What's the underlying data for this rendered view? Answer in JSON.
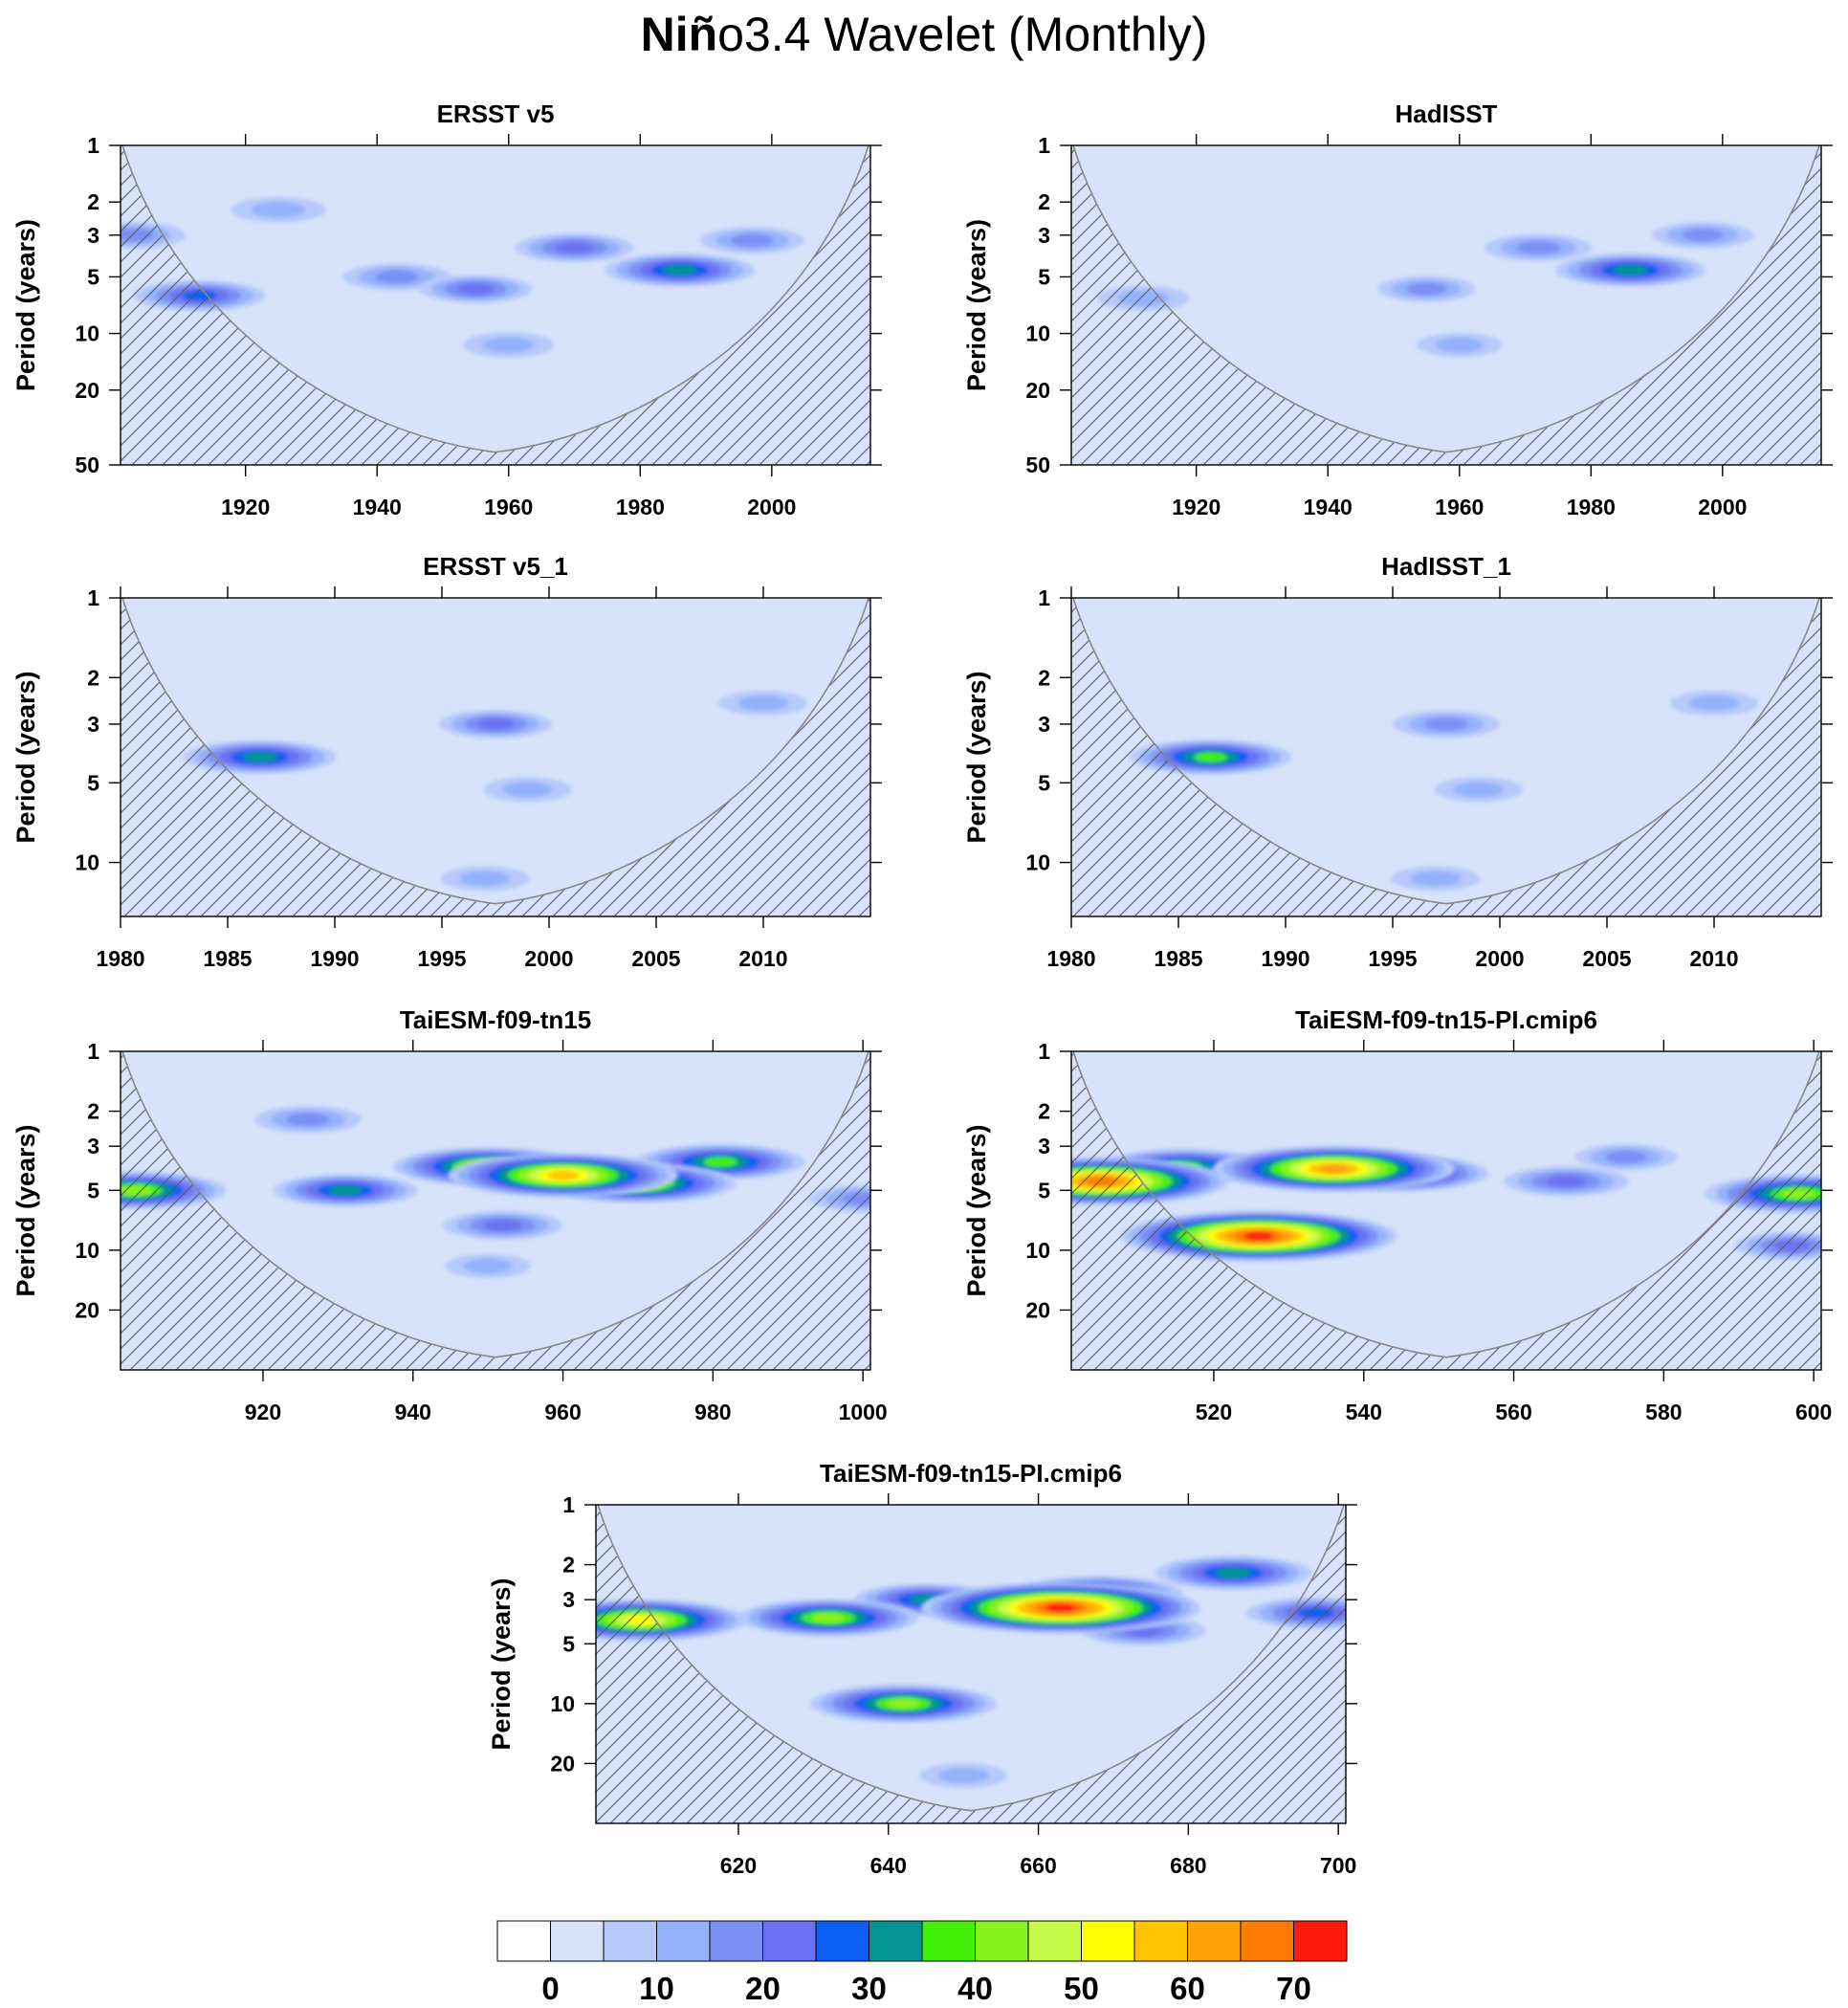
{
  "title": {
    "bold": "Niñ",
    "rest": "o3.4 Wavelet (Monthly)"
  },
  "colors": {
    "levels": [
      "#ffffff",
      "#d7e3fb",
      "#b6c9fb",
      "#94b1fb",
      "#7c8ff4",
      "#6a72f2",
      "#0b5ff2",
      "#049491",
      "#44f00a",
      "#89f21a",
      "#c6fa48",
      "#fffe00",
      "#ffc400",
      "#ffa10a",
      "#ff7b03",
      "#ff1a10"
    ],
    "hatch": "#555555",
    "coi_line": "#888888"
  },
  "chart_data": [
    {
      "type": "heatmap",
      "title": "ERSST v5",
      "ylabel": "Period (years)",
      "y_scale": "log",
      "xlim": [
        1901,
        2015
      ],
      "ylim": [
        1,
        50
      ],
      "x_ticks": [
        1920,
        1940,
        1960,
        1980,
        2000
      ],
      "y_ticks": [
        1,
        2,
        3,
        5,
        10,
        20,
        50
      ],
      "coi_min_x": 1958,
      "blobs": [
        {
          "x": 1986,
          "period": 4.6,
          "value": 32
        },
        {
          "x": 1913,
          "period": 6.3,
          "value": 26
        },
        {
          "x": 1970,
          "period": 3.5,
          "value": 22
        },
        {
          "x": 1955,
          "period": 5.8,
          "value": 20
        },
        {
          "x": 1943,
          "period": 5.0,
          "value": 18
        },
        {
          "x": 1997,
          "period": 3.2,
          "value": 17
        },
        {
          "x": 1903,
          "period": 3.0,
          "value": 17
        },
        {
          "x": 1925,
          "period": 2.2,
          "value": 14
        },
        {
          "x": 1960,
          "period": 11.5,
          "value": 13
        }
      ]
    },
    {
      "type": "heatmap",
      "title": "HadISST",
      "ylabel": "Period (years)",
      "y_scale": "log",
      "xlim": [
        1901,
        2015
      ],
      "ylim": [
        1,
        50
      ],
      "x_ticks": [
        1920,
        1940,
        1960,
        1980,
        2000
      ],
      "y_ticks": [
        1,
        2,
        3,
        5,
        10,
        20,
        50
      ],
      "coi_min_x": 1958,
      "blobs": [
        {
          "x": 1986,
          "period": 4.6,
          "value": 32
        },
        {
          "x": 1972,
          "period": 3.5,
          "value": 18
        },
        {
          "x": 1997,
          "period": 3.0,
          "value": 16
        },
        {
          "x": 1955,
          "period": 5.8,
          "value": 15
        },
        {
          "x": 1912,
          "period": 6.5,
          "value": 13
        },
        {
          "x": 1960,
          "period": 11.5,
          "value": 11
        }
      ]
    },
    {
      "type": "heatmap",
      "title": "ERSST v5_1",
      "ylabel": "Period (years)",
      "y_scale": "log",
      "xlim": [
        1980,
        2015
      ],
      "ylim": [
        1,
        16
      ],
      "x_ticks": [
        1980,
        1985,
        1990,
        1995,
        2000,
        2005,
        2010
      ],
      "y_ticks": [
        1,
        2,
        3,
        5,
        10
      ],
      "coi_min_x": 1997.5,
      "blobs": [
        {
          "x": 1986.5,
          "period": 4.0,
          "value": 33
        },
        {
          "x": 1997.5,
          "period": 3.0,
          "value": 20
        },
        {
          "x": 1999,
          "period": 5.3,
          "value": 12
        },
        {
          "x": 2010,
          "period": 2.5,
          "value": 12
        },
        {
          "x": 1997,
          "period": 11.5,
          "value": 12
        }
      ]
    },
    {
      "type": "heatmap",
      "title": "HadISST_1",
      "ylabel": "Period (years)",
      "y_scale": "log",
      "xlim": [
        1980,
        2015
      ],
      "ylim": [
        1,
        16
      ],
      "x_ticks": [
        1980,
        1985,
        1990,
        1995,
        2000,
        2005,
        2010
      ],
      "y_ticks": [
        1,
        2,
        3,
        5,
        10
      ],
      "coi_min_x": 1997.5,
      "blobs": [
        {
          "x": 1986.5,
          "period": 4.0,
          "value": 36
        },
        {
          "x": 1997.5,
          "period": 3.0,
          "value": 18
        },
        {
          "x": 1999,
          "period": 5.3,
          "value": 12
        },
        {
          "x": 2010,
          "period": 2.5,
          "value": 12
        },
        {
          "x": 1997,
          "period": 11.5,
          "value": 12
        }
      ]
    },
    {
      "type": "heatmap",
      "title": "TaiESM-f09-tn15",
      "ylabel": "Period (years)",
      "y_scale": "log",
      "xlim": [
        901,
        1001
      ],
      "ylim": [
        1,
        40
      ],
      "x_ticks": [
        920,
        940,
        960,
        980,
        1000
      ],
      "y_ticks": [
        1,
        2,
        3,
        5,
        10,
        20
      ],
      "coi_min_x": 951,
      "blobs": [
        {
          "x": 960,
          "period": 4.2,
          "value": 58
        },
        {
          "x": 970,
          "period": 4.6,
          "value": 47
        },
        {
          "x": 950,
          "period": 3.8,
          "value": 45
        },
        {
          "x": 903,
          "period": 5.0,
          "value": 42
        },
        {
          "x": 981,
          "period": 3.6,
          "value": 38
        },
        {
          "x": 931,
          "period": 5.0,
          "value": 30
        },
        {
          "x": 952,
          "period": 7.5,
          "value": 22
        },
        {
          "x": 926,
          "period": 2.2,
          "value": 18
        },
        {
          "x": 1000,
          "period": 5.5,
          "value": 18
        },
        {
          "x": 950,
          "period": 12,
          "value": 11
        }
      ]
    },
    {
      "type": "heatmap",
      "title": "TaiESM-f09-tn15-PI.cmip6",
      "ylabel": "Period (years)",
      "y_scale": "log",
      "xlim": [
        501,
        601
      ],
      "ylim": [
        1,
        40
      ],
      "x_ticks": [
        520,
        540,
        560,
        580,
        600
      ],
      "y_ticks": [
        1,
        2,
        3,
        5,
        10,
        20
      ],
      "coi_min_x": 551,
      "blobs": [
        {
          "x": 526,
          "period": 8.5,
          "value": 73
        },
        {
          "x": 505,
          "period": 4.5,
          "value": 66
        },
        {
          "x": 536,
          "period": 3.9,
          "value": 62
        },
        {
          "x": 545,
          "period": 4.1,
          "value": 40
        },
        {
          "x": 516,
          "period": 3.8,
          "value": 38
        },
        {
          "x": 598,
          "period": 5.2,
          "value": 44
        },
        {
          "x": 567,
          "period": 4.5,
          "value": 24
        },
        {
          "x": 597,
          "period": 9.5,
          "value": 20
        },
        {
          "x": 575,
          "period": 3.4,
          "value": 16
        }
      ]
    },
    {
      "type": "heatmap",
      "title": "TaiESM-f09-tn15-PI.cmip6",
      "ylabel": "Period (years)",
      "y_scale": "log",
      "xlim": [
        601,
        701
      ],
      "ylim": [
        1,
        40
      ],
      "x_ticks": [
        620,
        640,
        660,
        680,
        700
      ],
      "y_ticks": [
        1,
        2,
        3,
        5,
        10,
        20
      ],
      "coi_min_x": 651,
      "blobs": [
        {
          "x": 663,
          "period": 3.3,
          "value": 74
        },
        {
          "x": 607,
          "period": 3.8,
          "value": 52
        },
        {
          "x": 642,
          "period": 10,
          "value": 44
        },
        {
          "x": 632,
          "period": 3.7,
          "value": 42
        },
        {
          "x": 668,
          "period": 2.8,
          "value": 38
        },
        {
          "x": 686,
          "period": 2.2,
          "value": 34
        },
        {
          "x": 645,
          "period": 3.0,
          "value": 30
        },
        {
          "x": 697,
          "period": 3.5,
          "value": 28
        },
        {
          "x": 674,
          "period": 4.3,
          "value": 24
        },
        {
          "x": 650,
          "period": 23,
          "value": 12
        }
      ]
    }
  ],
  "colorbar": {
    "labels": [
      "0",
      "10",
      "20",
      "30",
      "40",
      "50",
      "60",
      "70"
    ]
  }
}
